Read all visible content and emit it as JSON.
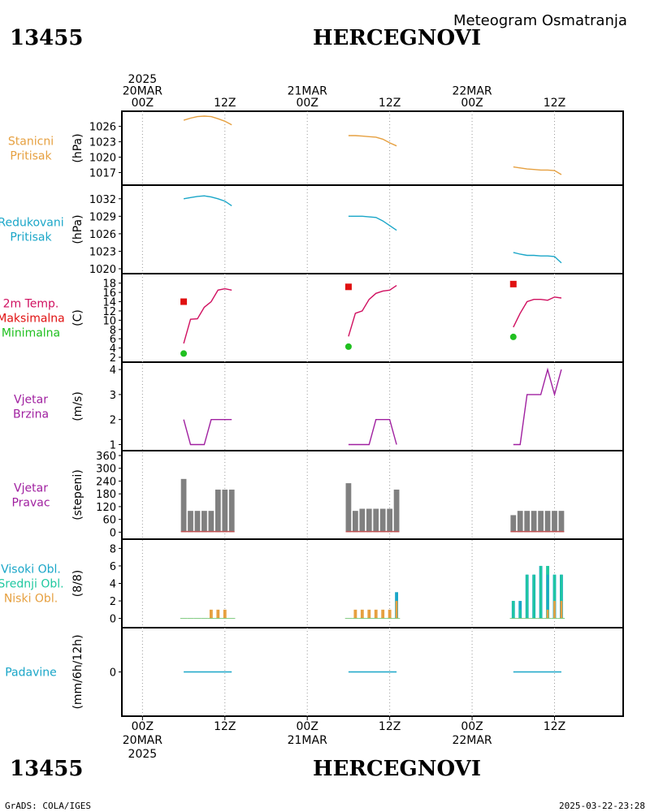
{
  "header": {
    "station_id": "13455",
    "station_name": "HERCEGNOVI",
    "product": "Meteogram Osmatranja"
  },
  "footer": {
    "station_id": "13455",
    "station_name": "HERCEGNOVI",
    "credit": "GrADS: COLA/IGES",
    "timestamp": "2025-03-22-23:28"
  },
  "time_axis": {
    "year": "2025",
    "ticks": [
      {
        "hour": 0,
        "top": [
          "2025",
          "20MAR",
          "00Z"
        ],
        "bottom": [
          "00Z",
          "20MAR",
          "2025"
        ]
      },
      {
        "hour": 12,
        "top": [
          "12Z"
        ],
        "bottom": [
          "12Z"
        ]
      },
      {
        "hour": 24,
        "top": [
          "21MAR",
          "00Z"
        ],
        "bottom": [
          "00Z",
          "21MAR"
        ]
      },
      {
        "hour": 36,
        "top": [
          "12Z"
        ],
        "bottom": [
          "12Z"
        ]
      },
      {
        "hour": 48,
        "top": [
          "22MAR",
          "00Z"
        ],
        "bottom": [
          "00Z",
          "22MAR"
        ]
      },
      {
        "hour": 60,
        "top": [
          "12Z"
        ],
        "bottom": [
          "12Z"
        ]
      }
    ],
    "range_hours": [
      -3,
      70
    ]
  },
  "panels": [
    {
      "key": "pressure",
      "labels": [
        {
          "text": "Stanicni",
          "color": "#e6a040"
        },
        {
          "text": "Pritisak",
          "color": "#e6a040"
        }
      ],
      "unit": "(hPa)"
    },
    {
      "key": "reduced",
      "labels": [
        {
          "text": "Redukovani",
          "color": "#1aa6c8"
        },
        {
          "text": "Pritisak",
          "color": "#1aa6c8"
        }
      ],
      "unit": "(hPa)"
    },
    {
      "key": "temp",
      "labels": [
        {
          "text": "2m Temp.",
          "color": "#d01060"
        },
        {
          "text": "Maksimalna",
          "color": "#e01010"
        },
        {
          "text": "Minimalna",
          "color": "#20c020"
        }
      ],
      "unit": "(C)"
    },
    {
      "key": "wind_speed",
      "labels": [
        {
          "text": "Vjetar",
          "color": "#a020a0"
        },
        {
          "text": "Brzina",
          "color": "#a020a0"
        }
      ],
      "unit": "(m/s)"
    },
    {
      "key": "wind_dir",
      "labels": [
        {
          "text": "Vjetar",
          "color": "#a020a0"
        },
        {
          "text": "Pravac",
          "color": "#a020a0"
        }
      ],
      "unit": "(stepeni)"
    },
    {
      "key": "clouds",
      "labels": [
        {
          "text": "Visoki Obl.",
          "color": "#1aa6c8"
        },
        {
          "text": "Srednji Obl.",
          "color": "#20c8a0"
        },
        {
          "text": "Niski Obl.",
          "color": "#e6a040"
        }
      ],
      "unit": "(8/8)"
    },
    {
      "key": "precip",
      "labels": [
        {
          "text": "Padavine",
          "color": "#1aa6c8"
        }
      ],
      "unit": "(mm/6h/12h)"
    }
  ],
  "chart_data": [
    {
      "type": "line",
      "key": "pressure",
      "color": "#e6a040",
      "ylim": [
        1015.5,
        1028
      ],
      "yticks": [
        1017,
        1020,
        1023,
        1026
      ],
      "segments": [
        [
          [
            6,
            1027.2
          ],
          [
            7,
            1027.6
          ],
          [
            8,
            1027.9
          ],
          [
            9,
            1028.0
          ],
          [
            10,
            1027.9
          ],
          [
            11,
            1027.5
          ],
          [
            12,
            1027.0
          ],
          [
            13,
            1026.3
          ]
        ],
        [
          [
            30,
            1024.2
          ],
          [
            31,
            1024.2
          ],
          [
            32,
            1024.1
          ],
          [
            33,
            1024.0
          ],
          [
            34,
            1023.9
          ],
          [
            35,
            1023.5
          ],
          [
            36,
            1022.8
          ],
          [
            37,
            1022.2
          ]
        ],
        [
          [
            54,
            1018.1
          ],
          [
            55,
            1017.9
          ],
          [
            56,
            1017.7
          ],
          [
            57,
            1017.6
          ],
          [
            58,
            1017.5
          ],
          [
            59,
            1017.5
          ],
          [
            60,
            1017.4
          ],
          [
            61,
            1016.6
          ]
        ]
      ]
    },
    {
      "type": "line",
      "key": "reduced",
      "color": "#1aa6c8",
      "ylim": [
        1020,
        1033.5
      ],
      "yticks": [
        1020,
        1023,
        1026,
        1029,
        1032
      ],
      "segments": [
        [
          [
            6,
            1032.0
          ],
          [
            7,
            1032.2
          ],
          [
            8,
            1032.4
          ],
          [
            9,
            1032.5
          ],
          [
            10,
            1032.3
          ],
          [
            11,
            1032.0
          ],
          [
            12,
            1031.6
          ],
          [
            13,
            1030.8
          ]
        ],
        [
          [
            30,
            1029.0
          ],
          [
            31,
            1029.0
          ],
          [
            32,
            1029.0
          ],
          [
            33,
            1028.9
          ],
          [
            34,
            1028.8
          ],
          [
            35,
            1028.2
          ],
          [
            36,
            1027.4
          ],
          [
            37,
            1026.6
          ]
        ],
        [
          [
            54,
            1022.8
          ],
          [
            55,
            1022.5
          ],
          [
            56,
            1022.3
          ],
          [
            57,
            1022.3
          ],
          [
            58,
            1022.2
          ],
          [
            59,
            1022.2
          ],
          [
            60,
            1022.1
          ],
          [
            61,
            1021.0
          ]
        ]
      ]
    },
    {
      "type": "line",
      "key": "temp",
      "color": "#d01060",
      "ylim": [
        2,
        19
      ],
      "yticks": [
        2,
        4,
        6,
        8,
        10,
        12,
        14,
        16,
        18
      ],
      "segments": [
        [
          [
            6,
            5
          ],
          [
            7,
            10.2
          ],
          [
            8,
            10.3
          ],
          [
            9,
            12.8
          ],
          [
            10,
            14.0
          ],
          [
            11,
            16.5
          ],
          [
            12,
            16.8
          ],
          [
            13,
            16.5
          ]
        ],
        [
          [
            30,
            6.5
          ],
          [
            31,
            11.5
          ],
          [
            32,
            12.0
          ],
          [
            33,
            14.5
          ],
          [
            34,
            15.8
          ],
          [
            35,
            16.3
          ],
          [
            36,
            16.5
          ],
          [
            37,
            17.5
          ]
        ],
        [
          [
            54,
            8.5
          ],
          [
            55,
            11.5
          ],
          [
            56,
            14.0
          ],
          [
            57,
            14.5
          ],
          [
            58,
            14.5
          ],
          [
            59,
            14.3
          ],
          [
            60,
            15.0
          ],
          [
            61,
            14.8
          ]
        ]
      ],
      "max_markers": [
        [
          6,
          14.0
        ],
        [
          30,
          17.2
        ],
        [
          54,
          17.8
        ]
      ],
      "min_markers": [
        [
          6,
          2.8
        ],
        [
          30,
          4.3
        ],
        [
          54,
          6.4
        ]
      ],
      "max_color": "#e01010",
      "min_color": "#20c020"
    },
    {
      "type": "line",
      "key": "wind_speed",
      "color": "#a020a0",
      "ylim": [
        0.95,
        4.1
      ],
      "yticks": [
        1,
        2,
        3,
        4
      ],
      "segments": [
        [
          [
            6,
            2
          ],
          [
            7,
            1
          ],
          [
            8,
            1
          ],
          [
            9,
            1
          ],
          [
            10,
            2
          ],
          [
            11,
            2
          ],
          [
            12,
            2
          ],
          [
            13,
            2
          ]
        ],
        [
          [
            30,
            1
          ],
          [
            31,
            1
          ],
          [
            32,
            1
          ],
          [
            33,
            1
          ],
          [
            34,
            2
          ],
          [
            35,
            2
          ],
          [
            36,
            2
          ],
          [
            37,
            1
          ]
        ],
        [
          [
            54,
            1
          ],
          [
            55,
            1
          ],
          [
            56,
            3
          ],
          [
            57,
            3
          ],
          [
            58,
            3
          ],
          [
            59,
            4
          ],
          [
            60,
            3
          ],
          [
            61,
            4
          ]
        ]
      ]
    },
    {
      "type": "bar",
      "key": "wind_dir",
      "color": "#808080",
      "baseline_color": "#c05050",
      "ylim": [
        -10,
        360
      ],
      "yticks": [
        0,
        60,
        120,
        180,
        240,
        300,
        360
      ],
      "hours": [
        6,
        7,
        8,
        9,
        10,
        11,
        12,
        13,
        30,
        31,
        32,
        33,
        34,
        35,
        36,
        37,
        54,
        55,
        56,
        57,
        58,
        59,
        60,
        61
      ],
      "values": [
        250,
        100,
        100,
        100,
        100,
        200,
        200,
        200,
        230,
        100,
        110,
        110,
        110,
        110,
        110,
        200,
        80,
        100,
        100,
        100,
        100,
        100,
        100,
        100
      ]
    },
    {
      "type": "bar",
      "key": "clouds",
      "ylim": [
        -0.5,
        8.5
      ],
      "yticks": [
        0,
        2,
        4,
        6,
        8
      ],
      "hours": [
        6,
        7,
        8,
        9,
        10,
        11,
        12,
        13,
        30,
        31,
        32,
        33,
        34,
        35,
        36,
        37,
        54,
        55,
        56,
        57,
        58,
        59,
        60,
        61
      ],
      "series": [
        {
          "name": "Visoki Obl.",
          "color": "#1aa6c8",
          "values": [
            0,
            0,
            0,
            0,
            0,
            0,
            0,
            0,
            0,
            0,
            0,
            0,
            0,
            0,
            0,
            3,
            2,
            2,
            5,
            5,
            6,
            5,
            5,
            5
          ]
        },
        {
          "name": "Srednji Obl.",
          "color": "#20c8a0",
          "values": [
            0,
            0,
            0,
            0,
            0,
            0,
            0,
            0,
            0,
            0,
            0,
            0,
            0,
            0,
            0,
            2,
            2,
            1,
            5,
            5,
            6,
            6,
            5,
            5
          ]
        },
        {
          "name": "Niski Obl.",
          "color": "#e6a040",
          "values": [
            0,
            0,
            0,
            0,
            1,
            1,
            1,
            0,
            0,
            1,
            1,
            1,
            1,
            1,
            1,
            2,
            0,
            0,
            0,
            0,
            0,
            1,
            2,
            2
          ]
        }
      ]
    },
    {
      "type": "line",
      "key": "precip",
      "color": "#1aa6c8",
      "ylim": [
        -5,
        5
      ],
      "yticks": [
        0
      ],
      "segments": [
        [
          [
            6,
            0
          ],
          [
            13,
            0
          ]
        ],
        [
          [
            30,
            0
          ],
          [
            37,
            0
          ]
        ],
        [
          [
            54,
            0
          ],
          [
            61,
            0
          ]
        ]
      ]
    }
  ]
}
